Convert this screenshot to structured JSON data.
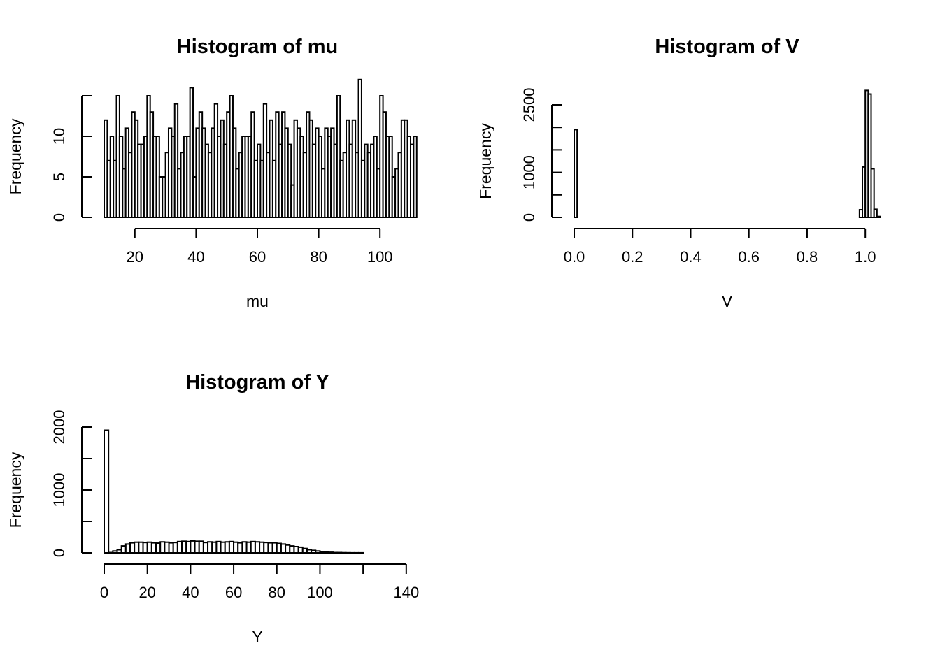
{
  "chart_data": [
    {
      "type": "bar",
      "title": "Histogram of mu",
      "xlabel": "mu",
      "ylabel": "Frequency",
      "xlim": [
        10,
        110
      ],
      "ylim": [
        0,
        15
      ],
      "xticks": [
        20,
        40,
        60,
        80,
        100
      ],
      "xtick_labels": [
        "20",
        "40",
        "60",
        "80",
        "100"
      ],
      "yticks": [
        0,
        5,
        10,
        15
      ],
      "ytick_labels": [
        "0",
        "5",
        "10",
        ""
      ],
      "bins": {
        "start": 10,
        "width": 1,
        "values": [
          12,
          7,
          10,
          7,
          15,
          10,
          6,
          11,
          8,
          13,
          12,
          9,
          9,
          10,
          15,
          13,
          10,
          10,
          5,
          5,
          8,
          11,
          10,
          14,
          6,
          8,
          10,
          10,
          16,
          5,
          11,
          13,
          11,
          9,
          8,
          11,
          14,
          10,
          12,
          9,
          13,
          15,
          11,
          6,
          8,
          10,
          10,
          10,
          13,
          7,
          9,
          7,
          14,
          8,
          12,
          7,
          13,
          9,
          13,
          11,
          9,
          4,
          12,
          11,
          10,
          8,
          13,
          12,
          9,
          11,
          10,
          6,
          11,
          10,
          11,
          9,
          15,
          7,
          8,
          12,
          9,
          12,
          8,
          17,
          7,
          9,
          8,
          9,
          10,
          6,
          15,
          13,
          10,
          10,
          5,
          6,
          8,
          12,
          12,
          10,
          9,
          10
        ]
      }
    },
    {
      "type": "bar",
      "title": "Histogram of V",
      "xlabel": "V",
      "ylabel": "Frequency",
      "xlim": [
        0,
        1.05
      ],
      "ylim": [
        0,
        2500
      ],
      "xticks": [
        0,
        0.2,
        0.4,
        0.6,
        0.8,
        1.0
      ],
      "xtick_labels": [
        "0.0",
        "0.2",
        "0.4",
        "0.6",
        "0.8",
        "1.0"
      ],
      "yticks": [
        0,
        500,
        1000,
        1500,
        2000,
        2500
      ],
      "ytick_labels": [
        "0",
        "",
        "1000",
        "",
        "",
        "2500"
      ],
      "bins": {
        "start": 0,
        "width": 0.01,
        "values": [
          1950,
          0,
          0,
          0,
          0,
          0,
          0,
          0,
          0,
          0,
          0,
          0,
          0,
          0,
          0,
          0,
          0,
          0,
          0,
          0,
          0,
          0,
          0,
          0,
          0,
          0,
          0,
          0,
          0,
          0,
          0,
          0,
          0,
          0,
          0,
          0,
          0,
          0,
          0,
          0,
          0,
          0,
          0,
          0,
          0,
          0,
          0,
          0,
          0,
          0,
          0,
          0,
          0,
          0,
          0,
          0,
          0,
          0,
          0,
          0,
          0,
          0,
          0,
          0,
          0,
          0,
          0,
          0,
          0,
          0,
          0,
          0,
          0,
          0,
          0,
          0,
          0,
          0,
          0,
          0,
          0,
          0,
          0,
          0,
          0,
          0,
          0,
          0,
          0,
          0,
          0,
          0,
          0,
          0,
          0,
          0,
          0,
          0,
          170,
          1120,
          2820,
          2740,
          1080,
          180,
          20
        ]
      }
    },
    {
      "type": "bar",
      "title": "Histogram of Y",
      "xlabel": "Y",
      "ylabel": "Frequency",
      "xlim": [
        0,
        142
      ],
      "ylim": [
        0,
        2000
      ],
      "xticks": [
        0,
        20,
        40,
        60,
        80,
        100,
        120,
        140
      ],
      "xtick_labels": [
        "0",
        "20",
        "40",
        "60",
        "80",
        "100",
        "",
        "140"
      ],
      "yticks": [
        0,
        500,
        1000,
        1500,
        2000
      ],
      "ytick_labels": [
        "0",
        "",
        "1000",
        "",
        "2000"
      ],
      "bins": {
        "start": 0,
        "width": 2,
        "values": [
          1950,
          5,
          30,
          50,
          110,
          140,
          160,
          170,
          170,
          165,
          170,
          160,
          155,
          175,
          170,
          160,
          165,
          180,
          185,
          180,
          190,
          185,
          185,
          165,
          175,
          170,
          180,
          170,
          175,
          180,
          170,
          160,
          175,
          170,
          180,
          175,
          170,
          165,
          160,
          160,
          150,
          140,
          125,
          110,
          100,
          90,
          70,
          50,
          40,
          30,
          20,
          15,
          10,
          5,
          5,
          3,
          2,
          1,
          1,
          1,
          0
        ]
      }
    }
  ]
}
